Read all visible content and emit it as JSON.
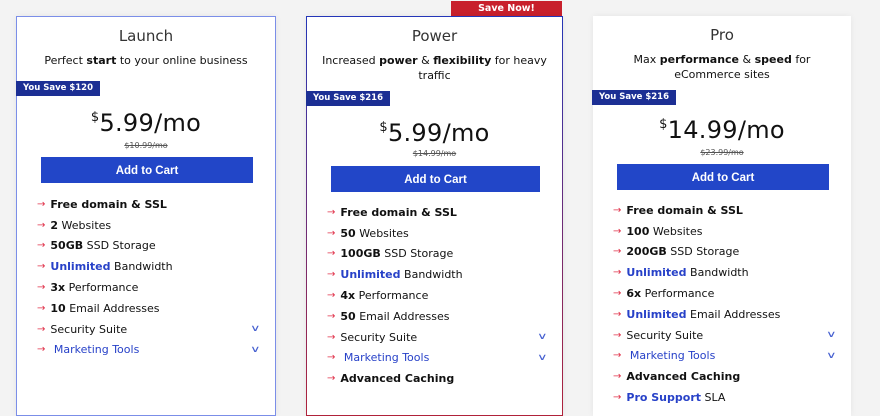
{
  "save_now": "Save Now!",
  "plans": [
    {
      "name": "Launch",
      "desc": [
        {
          "t": "Perfect "
        },
        {
          "t": "start",
          "b": true
        },
        {
          "t": " to your online business"
        }
      ],
      "savings": "You Save $120",
      "currency": "$",
      "price": "5.99/mo",
      "old_price": "$10.99/mo",
      "cta": "Add to Cart",
      "features": [
        {
          "b": "Free domain & SSL",
          "r": ""
        },
        {
          "b": "2",
          "r": " Websites"
        },
        {
          "b": "50GB",
          "r": " SSD Storage"
        },
        {
          "b": "Unlimited",
          "blue": true,
          "r": " Bandwidth"
        },
        {
          "b": "3x",
          "r": " Performance"
        },
        {
          "b": "10",
          "r": " Email Addresses"
        },
        {
          "b": "",
          "r": "Security Suite",
          "chev": true
        },
        {
          "b": "",
          "r": " Marketing Tools",
          "blueText": true,
          "chev": true
        }
      ]
    },
    {
      "name": "Power",
      "desc": [
        {
          "t": "Increased "
        },
        {
          "t": "power",
          "b": true
        },
        {
          "t": " & "
        },
        {
          "t": "flexibility",
          "b": true
        },
        {
          "t": " for heavy traffic"
        }
      ],
      "savings": "You Save $216",
      "currency": "$",
      "price": "5.99/mo",
      "old_price": "$14.99/mo",
      "cta": "Add to Cart",
      "features": [
        {
          "b": "Free domain & SSL",
          "r": ""
        },
        {
          "b": "50",
          "r": " Websites"
        },
        {
          "b": "100GB",
          "r": " SSD Storage"
        },
        {
          "b": "Unlimited",
          "blue": true,
          "r": " Bandwidth"
        },
        {
          "b": "4x",
          "r": " Performance"
        },
        {
          "b": "50",
          "r": " Email Addresses"
        },
        {
          "b": "",
          "r": "Security Suite",
          "chev": true
        },
        {
          "b": "",
          "r": " Marketing Tools",
          "blueText": true,
          "chev": true
        },
        {
          "b": "Advanced Caching",
          "r": ""
        }
      ]
    },
    {
      "name": "Pro",
      "desc": [
        {
          "t": "Max "
        },
        {
          "t": "performance",
          "b": true
        },
        {
          "t": " & "
        },
        {
          "t": "speed",
          "b": true
        },
        {
          "t": " for eCommerce sites"
        }
      ],
      "savings": "You Save $216",
      "currency": "$",
      "price": "14.99/mo",
      "old_price": "$23.99/mo",
      "cta": "Add to Cart",
      "features": [
        {
          "b": "Free domain & SSL",
          "r": ""
        },
        {
          "b": "100",
          "r": " Websites"
        },
        {
          "b": "200GB",
          "r": " SSD Storage"
        },
        {
          "b": "Unlimited",
          "blue": true,
          "r": " Bandwidth"
        },
        {
          "b": "6x",
          "r": " Performance"
        },
        {
          "b": "Unlimited",
          "blue": true,
          "r": " Email Addresses"
        },
        {
          "b": "",
          "r": "Security Suite",
          "chev": true
        },
        {
          "b": "",
          "r": " Marketing Tools",
          "blueText": true,
          "chev": true
        },
        {
          "b": "Advanced Caching",
          "r": ""
        },
        {
          "b": "Pro Support",
          "blue": true,
          "r": " SLA"
        }
      ]
    }
  ]
}
